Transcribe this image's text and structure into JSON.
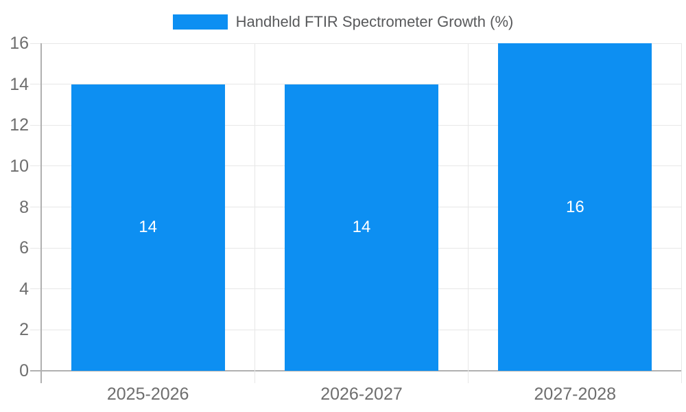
{
  "legend": {
    "label": "Handheld FTIR Spectrometer Growth (%)"
  },
  "chart_data": {
    "type": "bar",
    "title": "Handheld FTIR Spectrometer Growth (%)",
    "categories": [
      "2025-2026",
      "2026-2027",
      "2027-2028"
    ],
    "series": [
      {
        "name": "Handheld FTIR Spectrometer Growth (%)",
        "values": [
          14,
          14,
          16
        ]
      }
    ],
    "values": [
      14,
      14,
      16
    ],
    "data_labels": [
      "14",
      "14",
      "16"
    ],
    "xlabel": "",
    "ylabel": "",
    "ylim": [
      0,
      16
    ],
    "ytick_step": 2,
    "ytick_labels": [
      "0",
      "2",
      "4",
      "6",
      "8",
      "10",
      "12",
      "14",
      "16"
    ],
    "grid": true,
    "legend_position": "top-center",
    "colors": {
      "bar": "#0d8ff2",
      "grid": "#e7e7e7",
      "axis": "#b0b0b0",
      "axis_label": "#6e6e6e",
      "data_label": "#ffffff",
      "legend_text": "#58595b",
      "background": "#ffffff"
    }
  }
}
